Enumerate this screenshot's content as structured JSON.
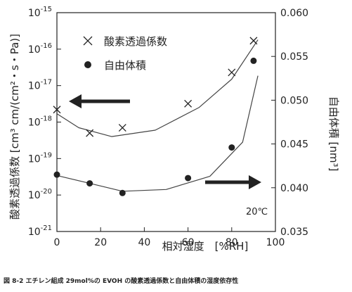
{
  "caption": "図 8-2 エチレン組成 29mol%の EVOH の酸素透過係数と自由体積の湿度依存性",
  "chart_data": {
    "type": "scatter",
    "xlabel": "相対湿度　[%RH]",
    "xlim": [
      0,
      100
    ],
    "xticks": [
      "0",
      "20",
      "40",
      "60",
      "80",
      "100"
    ],
    "left_axis": {
      "label": "酸素透過係数 [cm³ cm/(cm²・s・Pa)]",
      "scale": "log",
      "ylim": [
        1e-21,
        1e-15
      ],
      "tick_exponents": [
        -15,
        -16,
        -17,
        -18,
        -19,
        -20,
        -21
      ]
    },
    "right_axis": {
      "label": "自由体積 [nm³]",
      "scale": "linear",
      "ylim": [
        0.035,
        0.06
      ],
      "ticks": [
        "0.060",
        "0.055",
        "0.050",
        "0.045",
        "0.040",
        "0.035"
      ]
    },
    "series": [
      {
        "name": "酸素透過係数",
        "marker": "x",
        "axis": "left",
        "x": [
          0,
          15,
          30,
          60,
          80,
          90
        ],
        "y": [
          2.2e-18,
          5e-19,
          7e-19,
          3.2e-18,
          2.3e-17,
          1.7e-16
        ]
      },
      {
        "name": "自由体積",
        "marker": "dot",
        "axis": "right",
        "x": [
          0,
          15,
          30,
          60,
          80,
          90
        ],
        "y": [
          0.0415,
          0.0405,
          0.0394,
          0.0411,
          0.0446,
          0.0545
        ]
      }
    ],
    "annotation": "20℃",
    "legend_position": "top-left",
    "grid": false,
    "colors": {
      "ink": "#222222"
    }
  }
}
